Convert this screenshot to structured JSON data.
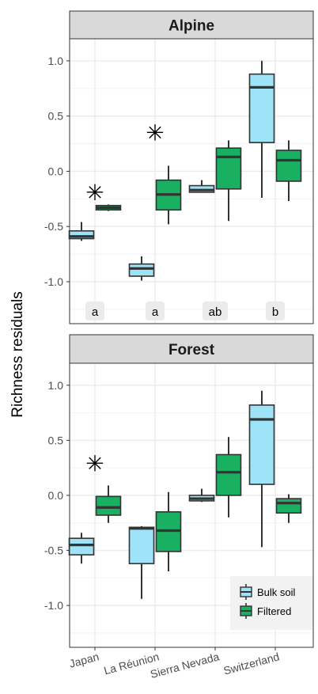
{
  "chart_data": {
    "type": "boxplot",
    "ylabel": "Richness residuals",
    "categories": [
      "Japan",
      "La Réunion",
      "Sierra Nevada",
      "Switzerland"
    ],
    "yticks": [
      1.0,
      0.5,
      0.0,
      -0.5,
      -1.0
    ],
    "ytick_labels": [
      "1.0",
      "0.5",
      "0.0",
      "-0.5",
      "-1.0"
    ],
    "ylim": [
      -1.38,
      1.2
    ],
    "legend": {
      "position": "bottom-right of Forest panel",
      "entries": [
        {
          "name": "Bulk soil",
          "color": "#9ee3f8"
        },
        {
          "name": "Filtered",
          "color": "#1ab062"
        }
      ]
    },
    "panels": [
      {
        "title": "Alpine",
        "letters": [
          "a",
          "a",
          "ab",
          "b"
        ],
        "significance": [
          {
            "category": "Japan",
            "symbol": "✳",
            "y": -0.19
          },
          {
            "category": "La Réunion",
            "symbol": "✳",
            "y": 0.35
          }
        ],
        "series": [
          {
            "name": "Bulk soil",
            "boxes": [
              {
                "min": -0.63,
                "q1": -0.61,
                "median": -0.59,
                "q3": -0.54,
                "max": -0.46
              },
              {
                "min": -0.99,
                "q1": -0.95,
                "median": -0.88,
                "q3": -0.84,
                "max": -0.77
              },
              {
                "min": -0.19,
                "q1": -0.19,
                "median": -0.17,
                "q3": -0.13,
                "max": -0.08
              },
              {
                "min": -0.24,
                "q1": 0.26,
                "median": 0.76,
                "q3": 0.88,
                "max": 1.0
              }
            ]
          },
          {
            "name": "Filtered",
            "boxes": [
              {
                "min": -0.36,
                "q1": -0.35,
                "median": -0.33,
                "q3": -0.31,
                "max": -0.3
              },
              {
                "min": -0.48,
                "q1": -0.35,
                "median": -0.21,
                "q3": -0.08,
                "max": 0.05
              },
              {
                "min": -0.45,
                "q1": -0.16,
                "median": 0.13,
                "q3": 0.21,
                "max": 0.28
              },
              {
                "min": -0.27,
                "q1": -0.09,
                "median": 0.1,
                "q3": 0.19,
                "max": 0.28
              }
            ]
          }
        ]
      },
      {
        "title": "Forest",
        "letters": [],
        "significance": [
          {
            "category": "Japan",
            "symbol": "✳",
            "y": 0.29
          }
        ],
        "series": [
          {
            "name": "Bulk soil",
            "boxes": [
              {
                "min": -0.62,
                "q1": -0.54,
                "median": -0.45,
                "q3": -0.39,
                "max": -0.34
              },
              {
                "min": -0.94,
                "q1": -0.62,
                "median": -0.3,
                "q3": -0.29,
                "max": -0.28
              },
              {
                "min": -0.06,
                "q1": -0.05,
                "median": -0.03,
                "q3": 0.0,
                "max": 0.06
              },
              {
                "min": -0.47,
                "q1": 0.1,
                "median": 0.69,
                "q3": 0.82,
                "max": 0.95
              }
            ]
          },
          {
            "name": "Filtered",
            "boxes": [
              {
                "min": -0.25,
                "q1": -0.18,
                "median": -0.11,
                "q3": -0.01,
                "max": 0.09
              },
              {
                "min": -0.69,
                "q1": -0.51,
                "median": -0.32,
                "q3": -0.15,
                "max": 0.03
              },
              {
                "min": -0.2,
                "q1": 0.0,
                "median": 0.21,
                "q3": 0.37,
                "max": 0.53
              },
              {
                "min": -0.25,
                "q1": -0.16,
                "median": -0.07,
                "q3": -0.03,
                "max": 0.01
              }
            ]
          }
        ]
      }
    ]
  }
}
